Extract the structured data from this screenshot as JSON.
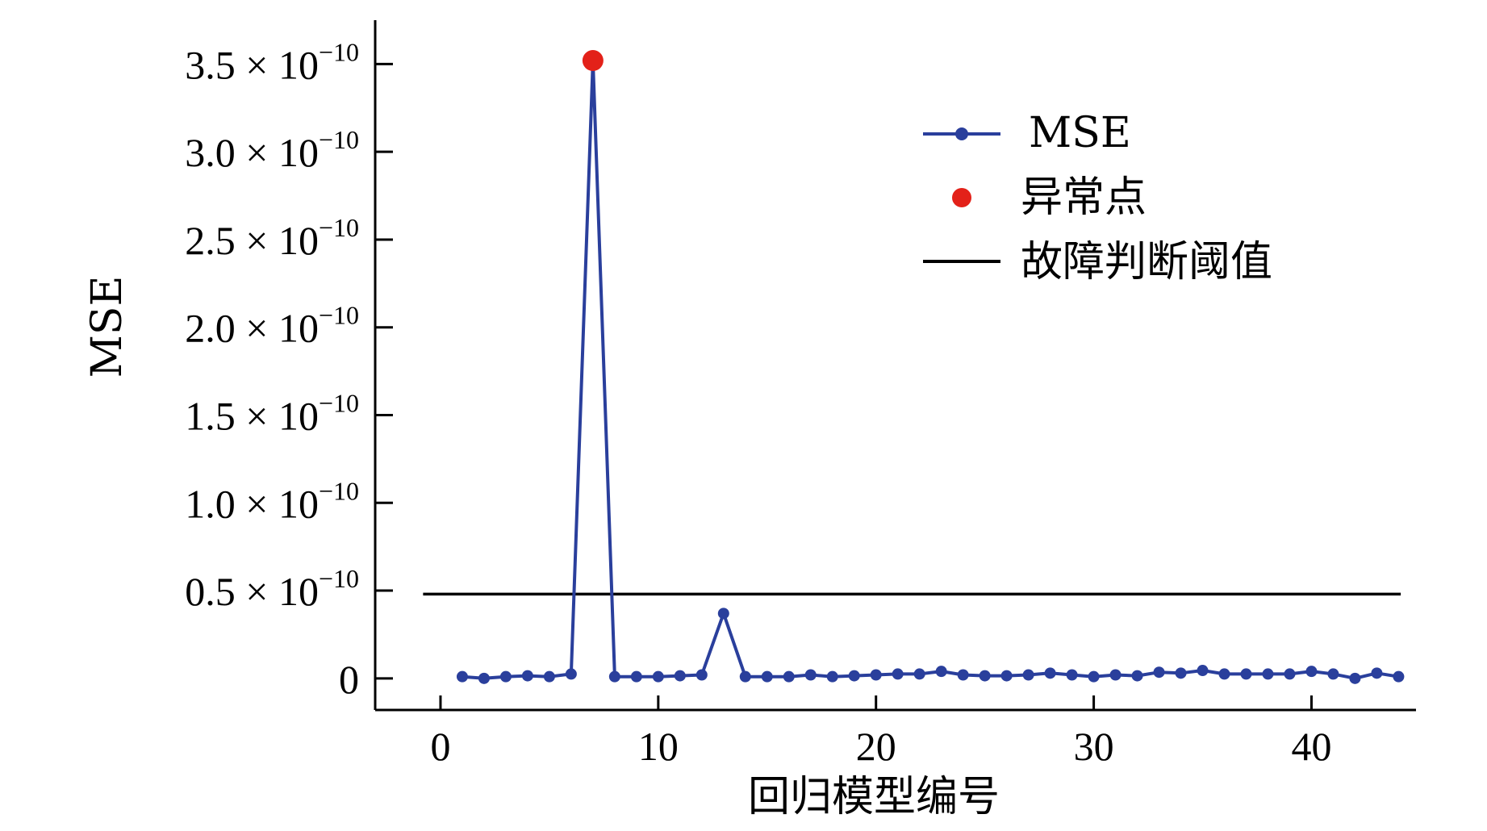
{
  "chart_data": {
    "type": "line",
    "xlabel": "回归模型编号",
    "ylabel": "MSE",
    "xlim": [
      -3,
      44.8
    ],
    "ylim": [
      -1.8e-11,
      3.75e-10
    ],
    "x_ticks": [
      {
        "value": 0,
        "label": "0"
      },
      {
        "value": 10,
        "label": "10"
      },
      {
        "value": 20,
        "label": "20"
      },
      {
        "value": 30,
        "label": "30"
      },
      {
        "value": 40,
        "label": "40"
      }
    ],
    "y_ticks": [
      {
        "value": 0,
        "mantissa": "0",
        "exponent": ""
      },
      {
        "value": 5e-11,
        "mantissa": "0.5 × 10",
        "exponent": "−10"
      },
      {
        "value": 1e-10,
        "mantissa": "1.0 × 10",
        "exponent": "−10"
      },
      {
        "value": 1.5e-10,
        "mantissa": "1.5 × 10",
        "exponent": "−10"
      },
      {
        "value": 2e-10,
        "mantissa": "2.0 × 10",
        "exponent": "−10"
      },
      {
        "value": 2.5e-10,
        "mantissa": "2.5 × 10",
        "exponent": "−10"
      },
      {
        "value": 3e-10,
        "mantissa": "3.0 × 10",
        "exponent": "−10"
      },
      {
        "value": 3.5e-10,
        "mantissa": "3.5 × 10",
        "exponent": "−10"
      }
    ],
    "series": [
      {
        "name": "MSE",
        "color": "#2a3f9c",
        "x": [
          1,
          2,
          3,
          4,
          5,
          6,
          7,
          8,
          9,
          10,
          11,
          12,
          13,
          14,
          15,
          16,
          17,
          18,
          19,
          20,
          21,
          22,
          23,
          24,
          25,
          26,
          27,
          28,
          29,
          30,
          31,
          32,
          33,
          34,
          35,
          36,
          37,
          38,
          39,
          40,
          41,
          42,
          43,
          44
        ],
        "y": [
          1e-12,
          0.0,
          1e-12,
          1.5e-12,
          1e-12,
          2.5e-12,
          3.52e-10,
          1e-12,
          1e-12,
          1e-12,
          1.5e-12,
          2e-12,
          3.7e-11,
          1e-12,
          1e-12,
          1e-12,
          2e-12,
          1e-12,
          1.5e-12,
          2e-12,
          2.5e-12,
          2.5e-12,
          4e-12,
          2e-12,
          1.5e-12,
          1.5e-12,
          2e-12,
          3e-12,
          2e-12,
          1e-12,
          2e-12,
          1.5e-12,
          3.5e-12,
          3e-12,
          4.5e-12,
          2.5e-12,
          2.5e-12,
          2.5e-12,
          2.5e-12,
          4e-12,
          2.5e-12,
          0.0,
          3e-12,
          1e-12
        ]
      },
      {
        "name": "异常点",
        "color": "#e32119",
        "x": [
          7
        ],
        "y": [
          3.52e-10
        ]
      },
      {
        "name": "故障判断阈值",
        "color": "#000000",
        "x": [
          -0.8,
          44.1
        ],
        "y": [
          4.8e-11,
          4.8e-11
        ]
      }
    ],
    "legend_position": "top-right"
  }
}
